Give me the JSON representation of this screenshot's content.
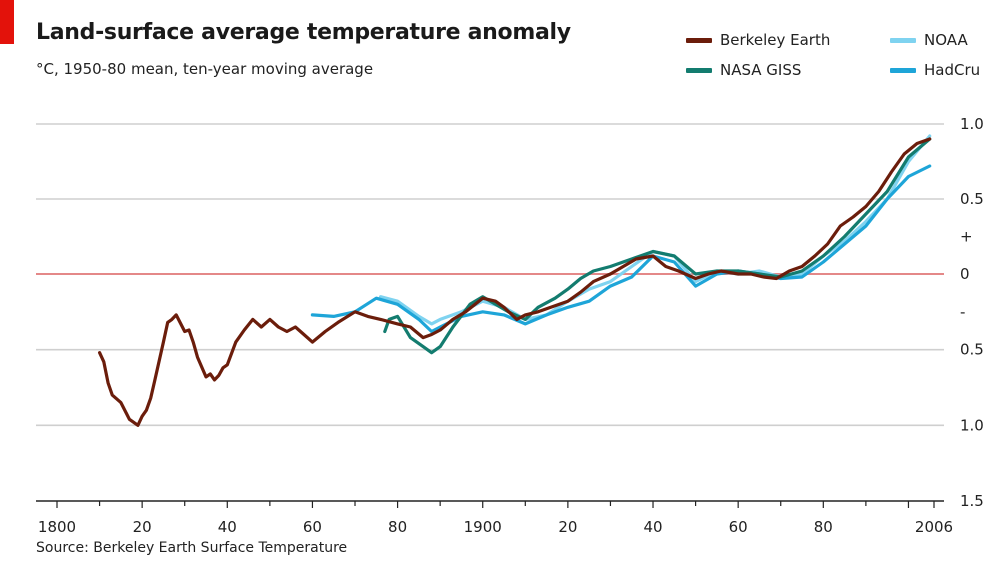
{
  "header": {
    "title": "Land-surface average temperature anomaly",
    "subtitle": "°C, 1950-80 mean, ten-year moving average"
  },
  "source": "Source: Berkeley Earth Surface Temperature",
  "colors": {
    "brand_red": "#e3120b",
    "berkeley": "#6b1d0b",
    "nasa": "#137c6f",
    "noaa": "#7fd3f0",
    "hadcru": "#1ea5d8",
    "zero_line": "#e48888",
    "grid": "#cfcfcf"
  },
  "legend": [
    {
      "name": "Berkeley Earth",
      "color": "#6b1d0b",
      "key": "berkeley"
    },
    {
      "name": "NASA GISS",
      "color": "#137c6f",
      "key": "nasa"
    },
    {
      "name": "NOAA",
      "color": "#7fd3f0",
      "key": "noaa"
    },
    {
      "name": "HadCru",
      "color": "#1ea5d8",
      "key": "hadcru"
    }
  ],
  "chart_data": {
    "type": "line",
    "title": "Land-surface average temperature anomaly",
    "subtitle": "°C, 1950-80 mean, ten-year moving average",
    "xlim": [
      1800,
      2010
    ],
    "ylim": [
      -1.5,
      1.0
    ],
    "x_ticks": [
      {
        "value": 1800,
        "label": "1800"
      },
      {
        "value": 1820,
        "label": "20"
      },
      {
        "value": 1840,
        "label": "40"
      },
      {
        "value": 1860,
        "label": "60"
      },
      {
        "value": 1880,
        "label": "80"
      },
      {
        "value": 1900,
        "label": "1900"
      },
      {
        "value": 1920,
        "label": "20"
      },
      {
        "value": 1940,
        "label": "40"
      },
      {
        "value": 1960,
        "label": "60"
      },
      {
        "value": 1980,
        "label": "80"
      },
      {
        "value": 2006,
        "label": "2006"
      }
    ],
    "y_ticks": [
      {
        "value": 1.0,
        "label": "1.0"
      },
      {
        "value": 0.5,
        "label": "0.5"
      },
      {
        "value": 0.25,
        "label": "+"
      },
      {
        "value": 0,
        "label": "0"
      },
      {
        "value": -0.25,
        "label": "-"
      },
      {
        "value": -0.5,
        "label": "0.5"
      },
      {
        "value": -1.0,
        "label": "1.0"
      },
      {
        "value": -1.5,
        "label": "1.5"
      }
    ],
    "gridlines": [
      1.0,
      0.5,
      -0.5,
      -1.0
    ],
    "zero_line": 0,
    "legend_position": "top-right",
    "series": [
      {
        "name": "NOAA",
        "key": "noaa",
        "x": [
          1876,
          1880,
          1885,
          1888,
          1890,
          1895,
          1900,
          1905,
          1910,
          1915,
          1920,
          1925,
          1930,
          1935,
          1940,
          1945,
          1950,
          1955,
          1960,
          1965,
          1970,
          1975,
          1980,
          1985,
          1990,
          1995,
          2000,
          2005
        ],
        "y": [
          -0.15,
          -0.18,
          -0.28,
          -0.33,
          -0.3,
          -0.25,
          -0.18,
          -0.22,
          -0.3,
          -0.27,
          -0.18,
          -0.1,
          -0.05,
          0.05,
          0.15,
          0.12,
          -0.05,
          0.02,
          0.0,
          0.02,
          -0.02,
          0.0,
          0.12,
          0.22,
          0.35,
          0.5,
          0.75,
          0.92
        ]
      },
      {
        "name": "HadCru",
        "key": "hadcru",
        "x": [
          1860,
          1865,
          1870,
          1875,
          1880,
          1885,
          1888,
          1890,
          1895,
          1900,
          1905,
          1910,
          1915,
          1920,
          1925,
          1930,
          1935,
          1940,
          1945,
          1950,
          1955,
          1960,
          1965,
          1970,
          1975,
          1980,
          1985,
          1990,
          1995,
          2000,
          2005
        ],
        "y": [
          -0.27,
          -0.28,
          -0.25,
          -0.16,
          -0.2,
          -0.3,
          -0.38,
          -0.35,
          -0.28,
          -0.25,
          -0.27,
          -0.33,
          -0.27,
          -0.22,
          -0.18,
          -0.08,
          -0.02,
          0.12,
          0.08,
          -0.08,
          0.0,
          0.02,
          0.0,
          -0.03,
          -0.02,
          0.08,
          0.2,
          0.32,
          0.5,
          0.65,
          0.72
        ]
      },
      {
        "name": "NASA GISS",
        "key": "nasa",
        "x": [
          1877,
          1878,
          1880,
          1883,
          1886,
          1888,
          1890,
          1893,
          1897,
          1900,
          1903,
          1906,
          1910,
          1913,
          1917,
          1920,
          1923,
          1926,
          1930,
          1935,
          1940,
          1945,
          1950,
          1955,
          1960,
          1965,
          1970,
          1975,
          1980,
          1985,
          1990,
          1995,
          2000,
          2005
        ],
        "y": [
          -0.38,
          -0.3,
          -0.28,
          -0.42,
          -0.48,
          -0.52,
          -0.48,
          -0.35,
          -0.2,
          -0.15,
          -0.2,
          -0.25,
          -0.3,
          -0.22,
          -0.16,
          -0.1,
          -0.03,
          0.02,
          0.05,
          0.1,
          0.15,
          0.12,
          0.0,
          0.02,
          0.02,
          0.0,
          -0.02,
          0.02,
          0.12,
          0.25,
          0.4,
          0.55,
          0.78,
          0.9
        ]
      },
      {
        "name": "Berkeley Earth",
        "key": "berkeley",
        "x": [
          1810,
          1811,
          1812,
          1813,
          1815,
          1817,
          1819,
          1820,
          1821,
          1822,
          1823,
          1825,
          1826,
          1827,
          1828,
          1830,
          1831,
          1832,
          1833,
          1835,
          1836,
          1837,
          1838,
          1839,
          1840,
          1842,
          1844,
          1846,
          1848,
          1850,
          1852,
          1854,
          1856,
          1858,
          1860,
          1863,
          1866,
          1870,
          1873,
          1876,
          1880,
          1883,
          1886,
          1888,
          1890,
          1893,
          1896,
          1900,
          1903,
          1905,
          1908,
          1910,
          1913,
          1916,
          1920,
          1923,
          1926,
          1930,
          1933,
          1936,
          1940,
          1943,
          1946,
          1950,
          1953,
          1956,
          1960,
          1963,
          1966,
          1969,
          1972,
          1975,
          1978,
          1981,
          1984,
          1987,
          1990,
          1993,
          1996,
          1999,
          2002,
          2005
        ],
        "y": [
          -0.52,
          -0.58,
          -0.72,
          -0.8,
          -0.85,
          -0.96,
          -1.0,
          -0.94,
          -0.9,
          -0.82,
          -0.7,
          -0.45,
          -0.32,
          -0.3,
          -0.27,
          -0.38,
          -0.37,
          -0.45,
          -0.55,
          -0.68,
          -0.66,
          -0.7,
          -0.67,
          -0.62,
          -0.6,
          -0.45,
          -0.37,
          -0.3,
          -0.35,
          -0.3,
          -0.35,
          -0.38,
          -0.35,
          -0.4,
          -0.45,
          -0.38,
          -0.32,
          -0.25,
          -0.28,
          -0.3,
          -0.33,
          -0.35,
          -0.42,
          -0.4,
          -0.37,
          -0.3,
          -0.25,
          -0.16,
          -0.18,
          -0.22,
          -0.3,
          -0.27,
          -0.25,
          -0.22,
          -0.18,
          -0.12,
          -0.05,
          0.0,
          0.05,
          0.1,
          0.12,
          0.05,
          0.02,
          -0.03,
          0.0,
          0.02,
          0.0,
          0.0,
          -0.02,
          -0.03,
          0.02,
          0.05,
          0.12,
          0.2,
          0.32,
          0.38,
          0.45,
          0.55,
          0.68,
          0.8,
          0.87,
          0.9
        ]
      }
    ]
  }
}
